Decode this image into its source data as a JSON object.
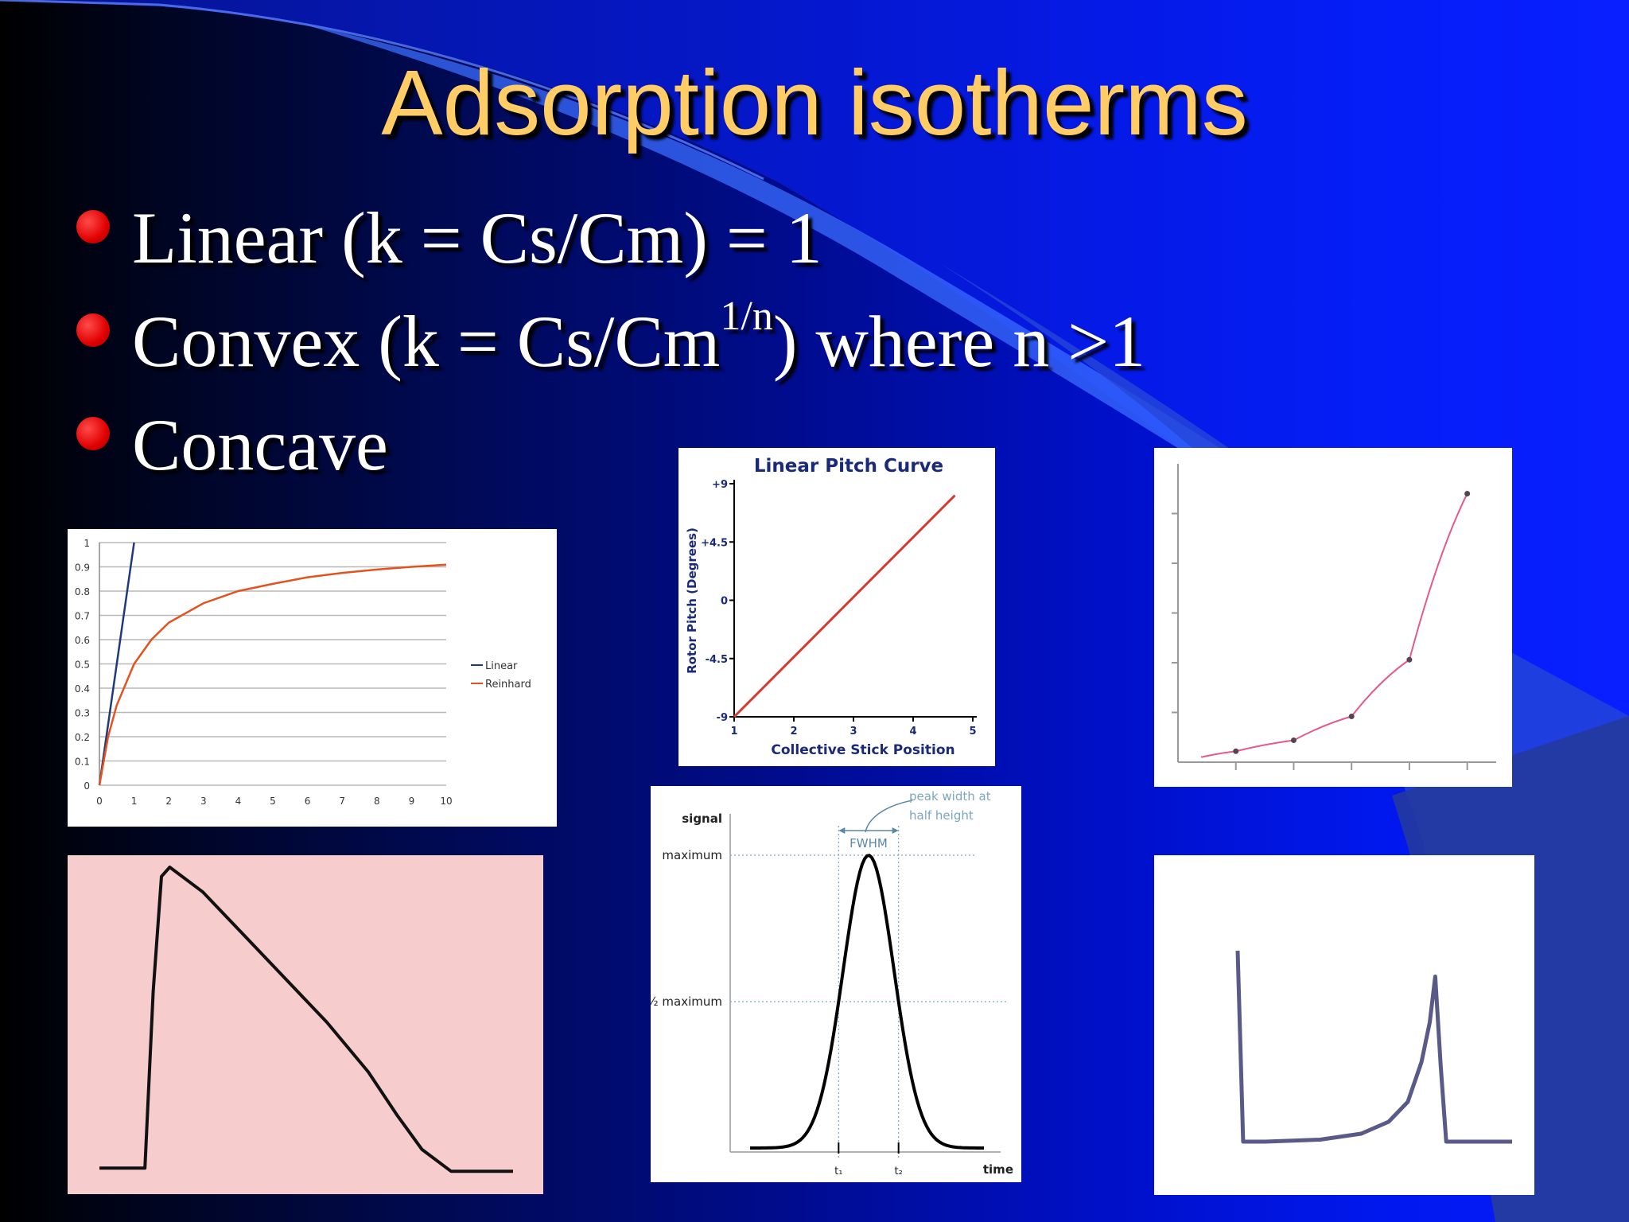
{
  "slide": {
    "title": "Adsorption isotherms",
    "colors": {
      "title": "#ffcc66",
      "bullet_dot": "#e00000",
      "text": "#ffffff"
    },
    "bullets": [
      {
        "text": "Linear  (k = Cs/Cm) = 1"
      },
      {
        "pre": "Convex (k = Cs/Cm",
        "sup": "1/n",
        "post": ") where n >1"
      },
      {
        "text": "Concave"
      }
    ]
  },
  "chart_data": [
    {
      "type": "line",
      "x": [
        0,
        0.25,
        0.5,
        1,
        1.5,
        2,
        3,
        4,
        5,
        6,
        7,
        8,
        9,
        10
      ],
      "series": [
        {
          "name": "Linear",
          "color": "#1f3a7a",
          "x": [
            0,
            1
          ],
          "values": [
            0,
            1
          ]
        },
        {
          "name": "Reinhard",
          "color": "#e2531f",
          "values": [
            0,
            0.2,
            0.33,
            0.5,
            0.6,
            0.67,
            0.75,
            0.8,
            0.83,
            0.857,
            0.875,
            0.889,
            0.9,
            0.909
          ]
        }
      ],
      "xticks": [
        "0",
        "1",
        "2",
        "3",
        "4",
        "5",
        "6",
        "7",
        "8",
        "9",
        "10"
      ],
      "yticks": [
        "0",
        "0.1",
        "0.2",
        "0.3",
        "0.4",
        "0.5",
        "0.6",
        "0.7",
        "0.8",
        "0.9",
        "1"
      ],
      "xlim": [
        0,
        10
      ],
      "ylim": [
        0,
        1
      ],
      "grid": true,
      "legend_position": "right"
    },
    {
      "type": "line",
      "title": "Linear Pitch Curve",
      "xlabel": "Collective Stick Position",
      "ylabel": "Rotor Pitch (Degrees)",
      "x": [
        1,
        4.7
      ],
      "series": [
        {
          "color": "#d63a2a",
          "values": [
            -9,
            8.1
          ]
        }
      ],
      "xticks": [
        "1",
        "2",
        "3",
        "4",
        "5"
      ],
      "yticks": [
        "+9",
        "+4.5",
        "0",
        "-4.5",
        "-9"
      ],
      "xlim": [
        1,
        5
      ],
      "ylim": [
        -9,
        9
      ]
    },
    {
      "type": "line",
      "series": [
        {
          "color": "#e45a8a",
          "x": [
            0.4,
            1,
            2,
            3,
            4,
            5
          ],
          "values": [
            0.5,
            1.1,
            2.2,
            4.6,
            10.3,
            27
          ]
        }
      ],
      "markers": [
        [
          1,
          1.1
        ],
        [
          2,
          2.2
        ],
        [
          3,
          4.6
        ],
        [
          4,
          10.3
        ],
        [
          5,
          27
        ]
      ],
      "xlim": [
        0,
        5.5
      ],
      "ylim": [
        0,
        30
      ]
    },
    {
      "type": "area",
      "series": [
        {
          "color": "#111111",
          "x": [
            0,
            0.11,
            0.13,
            0.15,
            0.17,
            0.25,
            0.35,
            0.45,
            0.55,
            0.65,
            0.72,
            0.78,
            0.85,
            1.0
          ],
          "values": [
            0.03,
            0.03,
            0.6,
            0.97,
            1.0,
            0.92,
            0.78,
            0.64,
            0.5,
            0.34,
            0.2,
            0.09,
            0.02,
            0.02
          ]
        }
      ],
      "background": "#f7cccc"
    },
    {
      "type": "line",
      "ylabel": "signal",
      "xlabel": "time",
      "annotation": "peak width at\nhalf height",
      "annotation_lines": [
        "peak width at",
        "half height"
      ],
      "fwhm_label": "FWHM",
      "levels": [
        "maximum",
        "½ maximum"
      ],
      "ticks": [
        "t₁",
        "t₂"
      ],
      "series": [
        {
          "color": "#000000",
          "shape": "gaussian",
          "peak": 1.0,
          "half_max": 0.5
        }
      ]
    },
    {
      "type": "line",
      "series": [
        {
          "color": "#5a5a88",
          "x": [
            0,
            0.02,
            0.1,
            0.3,
            0.45,
            0.55,
            0.62,
            0.67,
            0.7,
            0.72,
            0.74,
            0.76,
            0.8,
            1.0
          ],
          "values": [
            0.98,
            0.02,
            0.02,
            0.03,
            0.06,
            0.12,
            0.22,
            0.42,
            0.62,
            0.85,
            0.4,
            0.02,
            0.02,
            0.02
          ]
        }
      ]
    }
  ]
}
